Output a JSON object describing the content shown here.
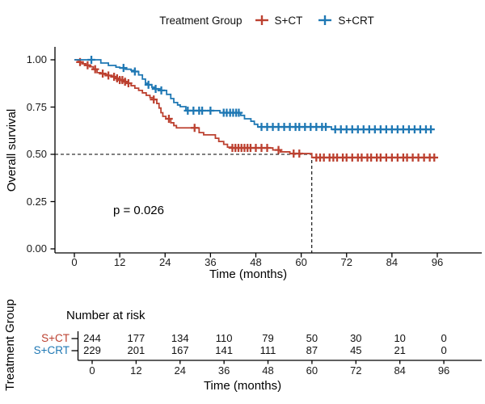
{
  "colors": {
    "sct": "#BC4130",
    "scrt": "#1F78B4",
    "axis": "#000000",
    "dashed": "#000000"
  },
  "legend": {
    "title": "Treatment Group",
    "items": [
      {
        "label": "S+CT",
        "color": "sct"
      },
      {
        "label": "S+CRT",
        "color": "scrt"
      }
    ]
  },
  "chart_data": {
    "type": "line",
    "subtype": "kaplan-meier-step",
    "title": "",
    "xlabel": "Time (months)",
    "ylabel": "Overall survival",
    "xlim": [
      0,
      96
    ],
    "ylim": [
      0,
      1
    ],
    "xticks": [
      0,
      12,
      24,
      36,
      48,
      60,
      72,
      84,
      96
    ],
    "yticks": [
      [
        0,
        "0.00"
      ],
      [
        0.25,
        "0.25"
      ],
      [
        0.5,
        "0.50"
      ],
      [
        0.75,
        "0.75"
      ],
      [
        1,
        "1.00"
      ]
    ],
    "p_value": "p = 0.026",
    "median_months_sct": 62.8,
    "median_survival_line": 0.5,
    "legend_position": "top",
    "grid": false,
    "series": [
      {
        "name": "S+CT",
        "color": "sct",
        "steps": [
          [
            0,
            1
          ],
          [
            1,
            0.988
          ],
          [
            2,
            0.979
          ],
          [
            3,
            0.971
          ],
          [
            4,
            0.963
          ],
          [
            5,
            0.95
          ],
          [
            6,
            0.932
          ],
          [
            7,
            0.927
          ],
          [
            8,
            0.922
          ],
          [
            9,
            0.917
          ],
          [
            10,
            0.91
          ],
          [
            11,
            0.902
          ],
          [
            12,
            0.893
          ],
          [
            13,
            0.884
          ],
          [
            14,
            0.876
          ],
          [
            15,
            0.863
          ],
          [
            16,
            0.85
          ],
          [
            17,
            0.838
          ],
          [
            18,
            0.825
          ],
          [
            19,
            0.812
          ],
          [
            20,
            0.8
          ],
          [
            21,
            0.79
          ],
          [
            21.8,
            0.769
          ],
          [
            22.4,
            0.745
          ],
          [
            22.9,
            0.72
          ],
          [
            23.4,
            0.701
          ],
          [
            24.2,
            0.688
          ],
          [
            25.5,
            0.667
          ],
          [
            26.3,
            0.652
          ],
          [
            27,
            0.64
          ],
          [
            33,
            0.615
          ],
          [
            34.2,
            0.603
          ],
          [
            37.3,
            0.585
          ],
          [
            38.2,
            0.568
          ],
          [
            39.5,
            0.553
          ],
          [
            40.5,
            0.538
          ],
          [
            41.5,
            0.534
          ],
          [
            52.5,
            0.523
          ],
          [
            54.5,
            0.513
          ],
          [
            57,
            0.504
          ],
          [
            62.8,
            0.483
          ],
          [
            95.5,
            0.483
          ]
        ],
        "censor_times": [
          1.5,
          3.5,
          5.5,
          7.5,
          9,
          10.5,
          11.3,
          12,
          12.7,
          13.4,
          14.3,
          21,
          25,
          31.8,
          41.8,
          42.6,
          43.4,
          44.2,
          45,
          45.8,
          46.6,
          48,
          49.5,
          51,
          54,
          58,
          59.5,
          64,
          65,
          66,
          67.5,
          68.5,
          69.5,
          71,
          72,
          73.5,
          75,
          76,
          77.5,
          78.5,
          80,
          81,
          82.5,
          84,
          85.5,
          87,
          88,
          89.5,
          91,
          92.5,
          94,
          95.2
        ]
      },
      {
        "name": "S+CRT",
        "color": "scrt",
        "steps": [
          [
            0,
            1
          ],
          [
            7,
            0.983
          ],
          [
            9,
            0.97
          ],
          [
            11,
            0.961
          ],
          [
            12,
            0.957
          ],
          [
            13.5,
            0.95
          ],
          [
            15,
            0.944
          ],
          [
            16,
            0.938
          ],
          [
            17,
            0.92
          ],
          [
            18,
            0.898
          ],
          [
            18.8,
            0.876
          ],
          [
            19.4,
            0.868
          ],
          [
            20.5,
            0.855
          ],
          [
            21.3,
            0.846
          ],
          [
            22.6,
            0.838
          ],
          [
            24.4,
            0.817
          ],
          [
            25.5,
            0.795
          ],
          [
            26.3,
            0.774
          ],
          [
            27.3,
            0.761
          ],
          [
            28,
            0.752
          ],
          [
            29.5,
            0.731
          ],
          [
            38.5,
            0.72
          ],
          [
            44,
            0.706
          ],
          [
            45,
            0.688
          ],
          [
            46.7,
            0.675
          ],
          [
            47.6,
            0.659
          ],
          [
            48.5,
            0.645
          ],
          [
            68,
            0.632
          ],
          [
            94.5,
            0.632
          ]
        ],
        "censor_times": [
          4.5,
          13,
          16,
          19.6,
          21.5,
          23,
          30,
          31.5,
          33,
          33.8,
          36,
          39.5,
          40.3,
          41.2,
          42,
          42.8,
          43.5,
          49.5,
          51,
          52.5,
          54,
          55.5,
          57,
          58.5,
          59.5,
          61,
          62.5,
          64,
          65.5,
          66.5,
          69,
          70.5,
          72,
          73.5,
          75,
          76.5,
          78,
          79.5,
          81,
          82.5,
          84,
          85.5,
          87,
          88.5,
          90,
          91.5,
          93,
          94.3
        ]
      }
    ]
  },
  "risk_table": {
    "title": "Number at risk",
    "ylabel": "Treatment Group",
    "xlabel": "Time (months)",
    "times": [
      0,
      12,
      24,
      36,
      48,
      60,
      72,
      84,
      96
    ],
    "rows": [
      {
        "label": "S+CT",
        "color": "sct",
        "counts": [
          244,
          177,
          134,
          110,
          79,
          50,
          30,
          10,
          0
        ]
      },
      {
        "label": "S+CRT",
        "color": "scrt",
        "counts": [
          229,
          201,
          167,
          141,
          111,
          87,
          45,
          21,
          0
        ]
      }
    ]
  }
}
